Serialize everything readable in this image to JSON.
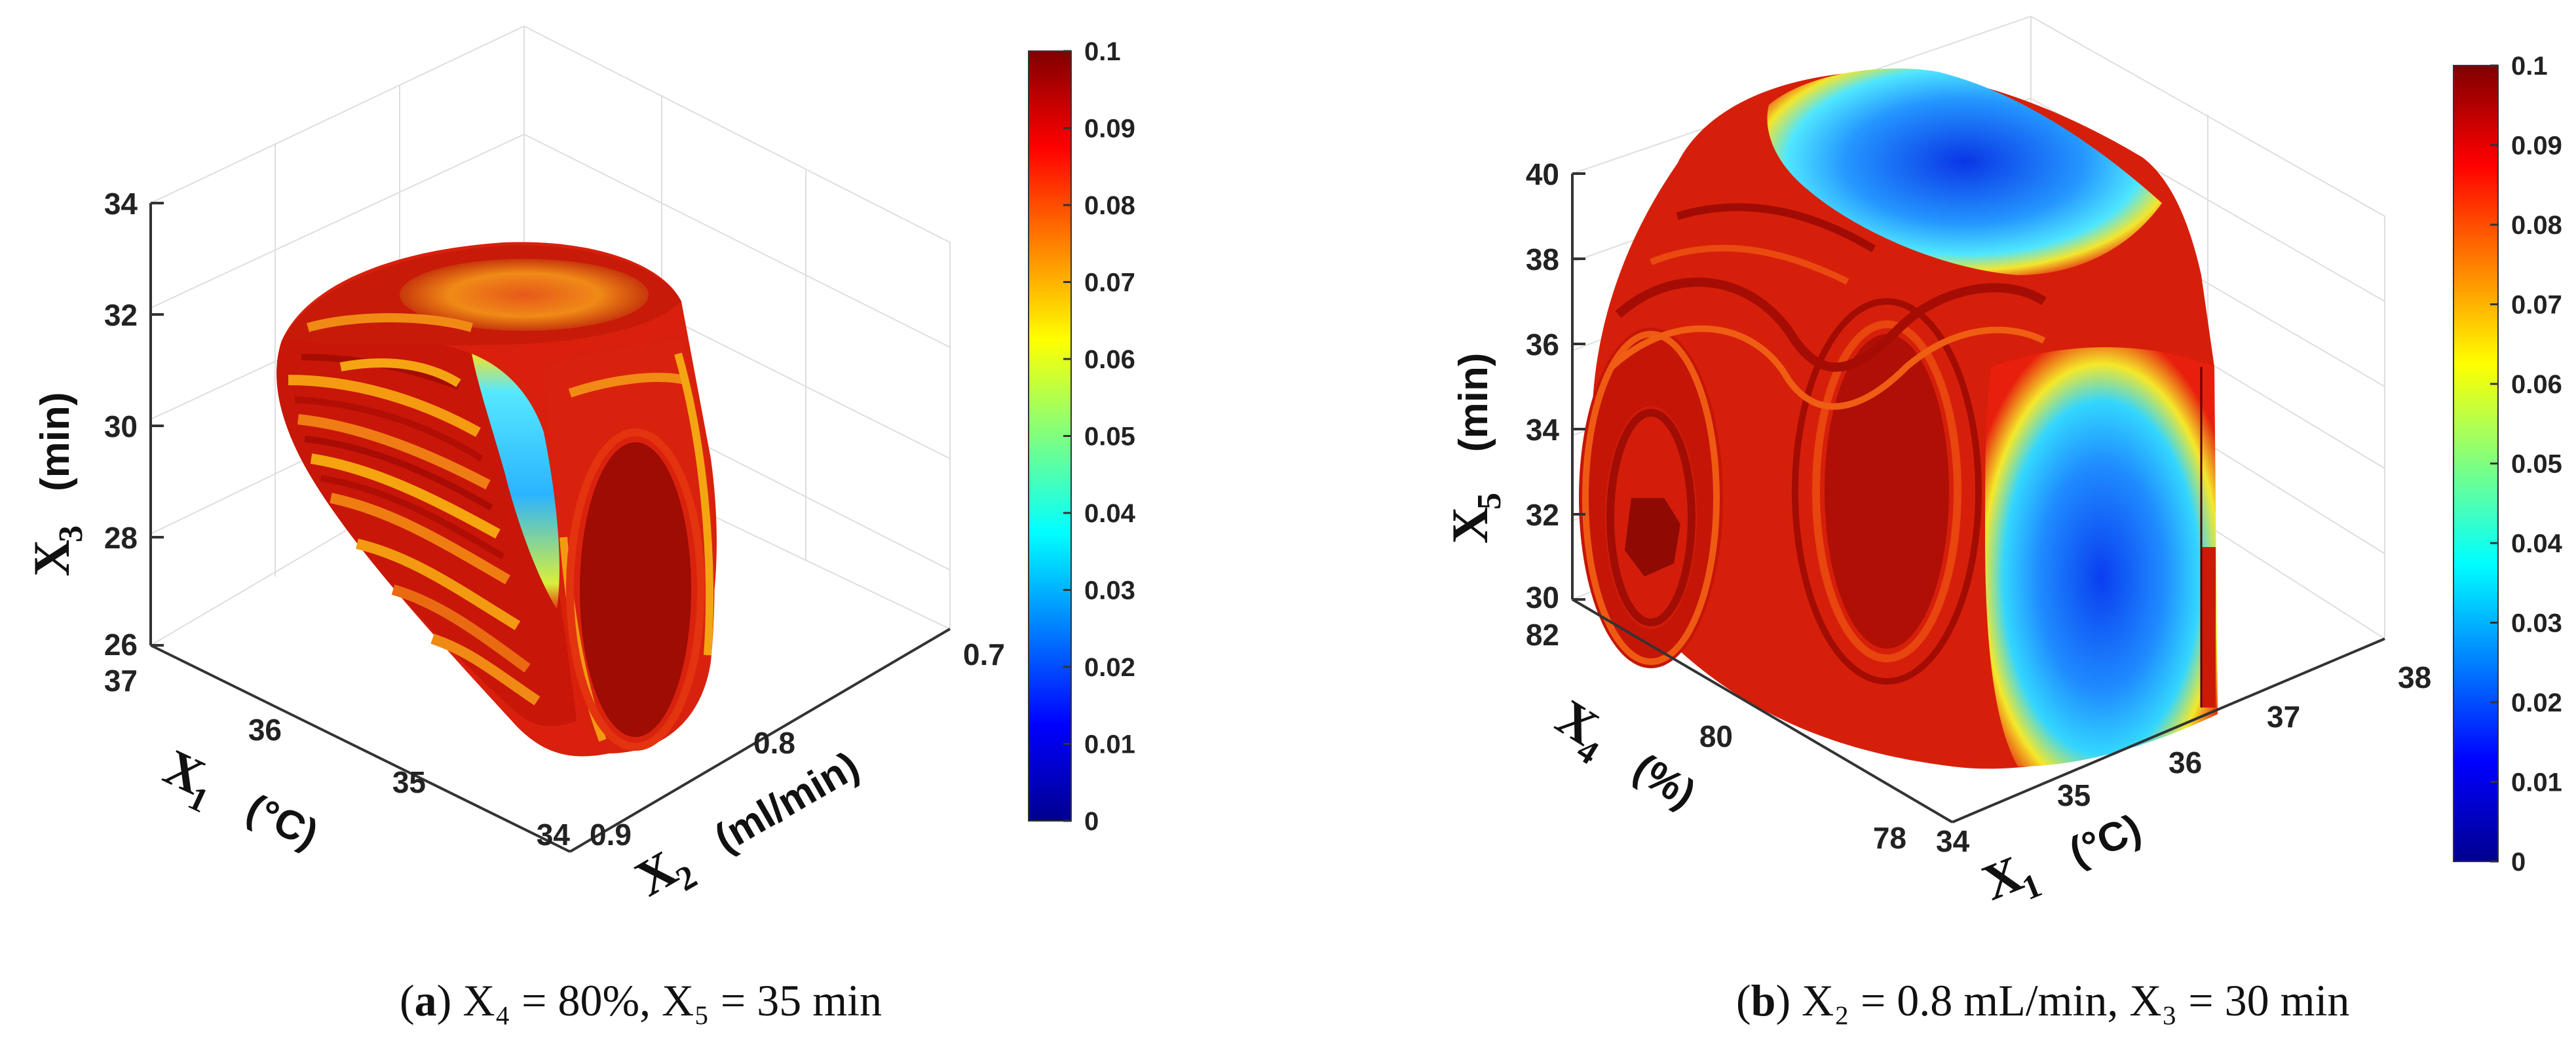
{
  "chart_data": [
    {
      "type": "3d-volume",
      "panel_label": "a",
      "caption": "X₄ = 80%, X₅ = 35 min",
      "axes": {
        "x1": {
          "label": "X",
          "sub": "1",
          "unit": "(°C)",
          "ticks": [
            "37",
            "36",
            "35",
            "34"
          ]
        },
        "x2": {
          "label": "X",
          "sub": "2",
          "unit": "(ml/min)",
          "ticks": [
            "0.9",
            "0.8",
            "0.7"
          ]
        },
        "x3": {
          "label": "X",
          "sub": "3",
          "unit": "(min)",
          "ticks": [
            "26",
            "28",
            "30",
            "32",
            "34"
          ]
        }
      },
      "colorbar": {
        "min": 0,
        "max": 0.1,
        "ticks": [
          "0",
          "0.01",
          "0.02",
          "0.03",
          "0.04",
          "0.05",
          "0.06",
          "0.07",
          "0.08",
          "0.09",
          "0.1"
        ]
      }
    },
    {
      "type": "3d-volume",
      "panel_label": "b",
      "caption": "X₂ = 0.8 mL/min, X₃ = 30 min",
      "axes": {
        "x1": {
          "label": "X",
          "sub": "1",
          "unit": "(°C)",
          "ticks": [
            "34",
            "35",
            "36",
            "37",
            "38"
          ]
        },
        "x4": {
          "label": "X",
          "sub": "4",
          "unit": "(%)",
          "ticks": [
            "82",
            "80",
            "78"
          ]
        },
        "x5": {
          "label": "X",
          "sub": "5",
          "unit": "(min)",
          "ticks": [
            "30",
            "32",
            "34",
            "36",
            "38",
            "40"
          ]
        }
      },
      "colorbar": {
        "min": 0,
        "max": 0.1,
        "ticks": [
          "0",
          "0.01",
          "0.02",
          "0.03",
          "0.04",
          "0.05",
          "0.06",
          "0.07",
          "0.08",
          "0.09",
          "0.1"
        ]
      }
    }
  ]
}
